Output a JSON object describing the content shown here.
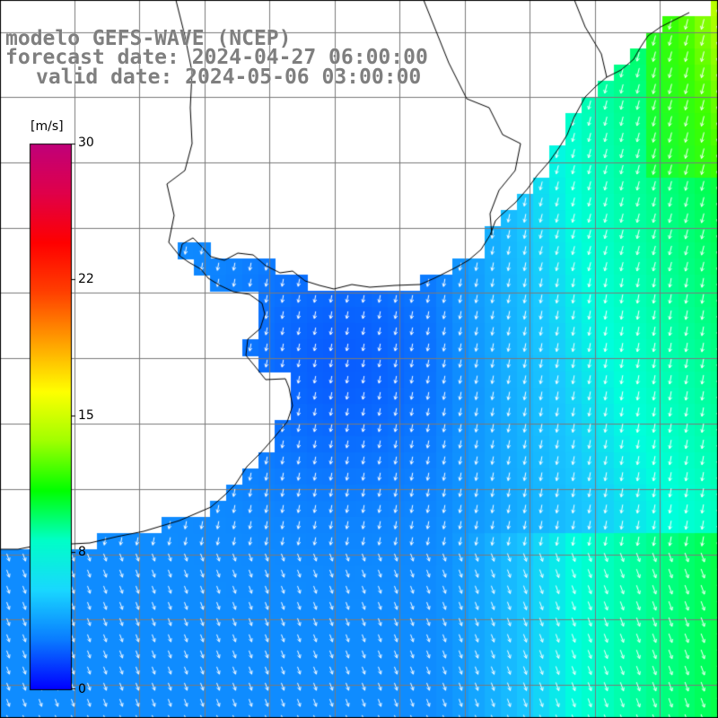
{
  "title": {
    "line1": "modelo GEFS-WAVE (NCEP)",
    "line2": "forecast date: 2024-04-27 06:00:00",
    "line3": "valid date: 2024-05-06 03:00:00"
  },
  "colorbar": {
    "unit": "[m/s]",
    "min": 0,
    "max": 30,
    "ticks": [
      "30",
      "22",
      "15",
      "8",
      "0"
    ],
    "colors": [
      "#0000ff",
      "#0a7cff",
      "#19d8ff",
      "#00ffc8",
      "#00ff00",
      "#a0ff00",
      "#ffff00",
      "#ffa000",
      "#ff4000",
      "#ff0000",
      "#e0004a",
      "#c0007a"
    ]
  },
  "map": {
    "land_color": "#ffffff",
    "coast_color": "#000000",
    "grid_color": "#7a7a7a",
    "field_description_colors": [
      "#1a64ff",
      "#1e90ff",
      "#19c8ff",
      "#00ffd0",
      "#00ff80",
      "#30ff30"
    ]
  }
}
